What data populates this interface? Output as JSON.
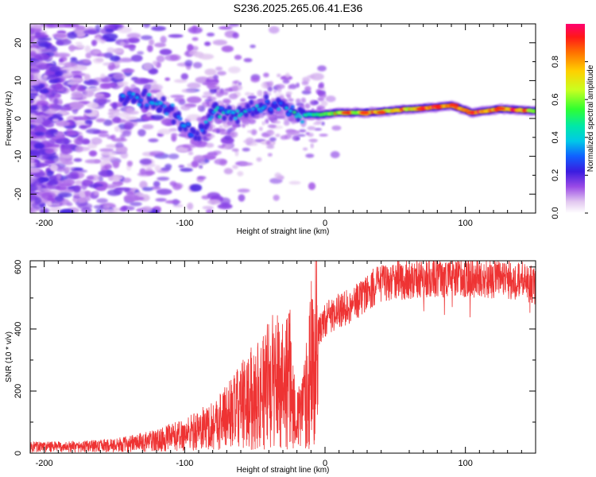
{
  "title": "S236.2025.265.06.41.E36",
  "chart_data": [
    {
      "type": "heatmap",
      "title": "S236.2025.265.06.41.E36",
      "xlabel": "Height of straight line (km)",
      "ylabel": "Frequency (Hz)",
      "xlim": [
        -210,
        150
      ],
      "ylim": [
        -25,
        25
      ],
      "xticks": [
        -200,
        -100,
        0,
        100
      ],
      "yticks": [
        -20,
        -10,
        0,
        10,
        20
      ],
      "colorbar": {
        "label": "Normalized spectral amplitude",
        "range": [
          0.0,
          1.0
        ],
        "ticks": [
          0.0,
          0.2,
          0.4,
          0.6,
          0.8
        ]
      },
      "ridge": [
        {
          "x": -140,
          "y": 6,
          "v": 0.3
        },
        {
          "x": -125,
          "y": 5,
          "v": 0.35
        },
        {
          "x": -110,
          "y": 2,
          "v": 0.3
        },
        {
          "x": -100,
          "y": -2,
          "v": 0.3
        },
        {
          "x": -90,
          "y": -5,
          "v": 0.25
        },
        {
          "x": -80,
          "y": 2,
          "v": 0.4
        },
        {
          "x": -65,
          "y": 1,
          "v": 0.4
        },
        {
          "x": -50,
          "y": 2,
          "v": 0.35
        },
        {
          "x": -35,
          "y": 4,
          "v": 0.3
        },
        {
          "x": -20,
          "y": 1,
          "v": 0.45
        },
        {
          "x": -5,
          "y": 1,
          "v": 0.5
        },
        {
          "x": 10,
          "y": 1.5,
          "v": 0.6
        },
        {
          "x": 30,
          "y": 1.5,
          "v": 0.7
        },
        {
          "x": 60,
          "y": 2.5,
          "v": 0.7
        },
        {
          "x": 80,
          "y": 3,
          "v": 0.85
        },
        {
          "x": 90,
          "y": 3.5,
          "v": 0.8
        },
        {
          "x": 105,
          "y": 1.5,
          "v": 0.75
        },
        {
          "x": 125,
          "y": 2.5,
          "v": 0.8
        },
        {
          "x": 150,
          "y": 2,
          "v": 0.6
        }
      ]
    },
    {
      "type": "line",
      "xlabel": "Height of straight line (km)",
      "ylabel": "SNR (10 * v/v)",
      "xlim": [
        -210,
        150
      ],
      "ylim": [
        0,
        620
      ],
      "xticks": [
        -200,
        -100,
        0,
        100
      ],
      "yticks": [
        0,
        200,
        400,
        600
      ],
      "series": [
        {
          "name": "SNR",
          "color": "#ee3333",
          "x": [
            -210,
            -180,
            -150,
            -120,
            -100,
            -80,
            -60,
            -45,
            -35,
            -25,
            -20,
            -15,
            -10,
            -5,
            0,
            10,
            20,
            30,
            40,
            50,
            60,
            80,
            100,
            120,
            140,
            150
          ],
          "y": [
            20,
            20,
            25,
            40,
            60,
            90,
            150,
            200,
            240,
            240,
            100,
            150,
            280,
            380,
            430,
            460,
            480,
            520,
            550,
            555,
            560,
            565,
            565,
            560,
            555,
            540
          ]
        }
      ]
    }
  ]
}
